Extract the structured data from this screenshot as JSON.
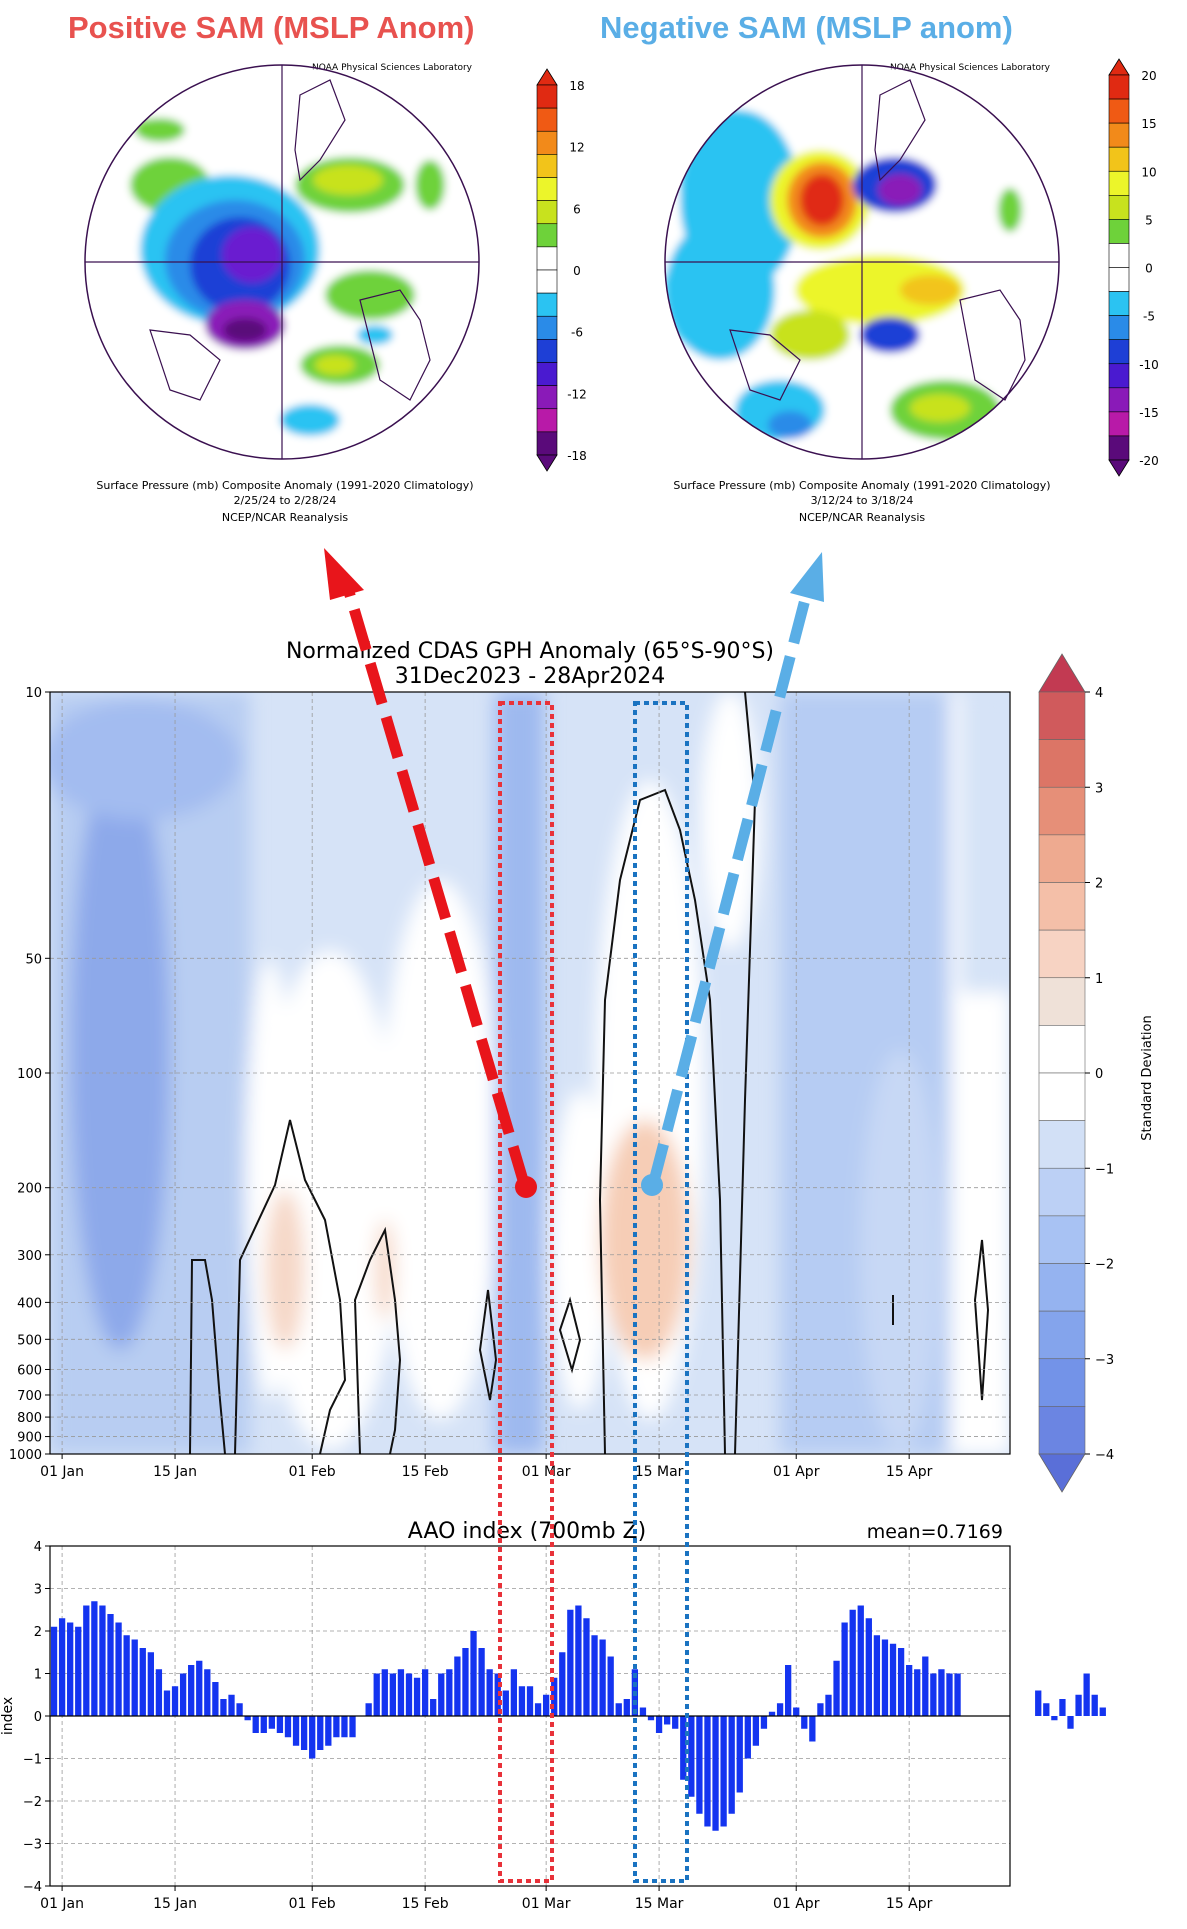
{
  "maps": [
    {
      "header": "Positive SAM (MSLP Anom)",
      "header_color": "#e8524f",
      "credit": "NOAA Physical Sciences Laboratory",
      "caption1": "Surface Pressure (mb) Composite Anomaly (1991-2020 Climatology)",
      "caption2": "2/25/24  to 2/28/24",
      "caption3": "NCEP/NCAR Reanalysis",
      "colorbar_ticks": [
        "18",
        "12",
        "6",
        "0",
        "-6",
        "-12",
        "-18"
      ]
    },
    {
      "header": "Negative SAM (MSLP anom)",
      "header_color": "#5aaee6",
      "credit": "NOAA Physical Sciences Laboratory",
      "caption1": "Surface Pressure (mb) Composite Anomaly (1991-2020 Climatology)",
      "caption2": "3/12/24  to 3/18/24",
      "caption3": "NCEP/NCAR Reanalysis",
      "colorbar_ticks": [
        "20",
        "15",
        "10",
        "5",
        "0",
        "-5",
        "-10",
        "-15",
        "-20"
      ]
    }
  ],
  "colors": {
    "positive_arrow": "#e8151b",
    "negative_arrow": "#5aaee6",
    "red_box": "#e8323a",
    "blue_box": "#1a73c1",
    "bars": "#1434f0"
  },
  "chart_data": [
    {
      "type": "heatmap",
      "title": "Normalized CDAS GPH Anomaly (65°S-90°S)",
      "subtitle": "31Dec2023 - 28Apr2024",
      "y_scale": "log (reversed)",
      "y_tick_labels": [
        "10",
        "50",
        "100",
        "200",
        "300",
        "400",
        "500",
        "600",
        "700",
        "800",
        "900",
        "1000"
      ],
      "x_tick_labels": [
        "01 Jan",
        "15 Jan",
        "01 Feb",
        "15 Feb",
        "01 Mar",
        "15 Mar",
        "01 Apr",
        "15 Apr"
      ],
      "colorbar_label": "Standard Deviation",
      "colorbar_ticks": [
        "4",
        "3",
        "2",
        "1",
        "0",
        "−1",
        "−2",
        "−3",
        "−4"
      ],
      "grid": true
    },
    {
      "type": "bar",
      "title": "AAO index (700mb Z)",
      "annotation": "mean=0.7169",
      "ylabel": "index",
      "ylim": [
        -4,
        4
      ],
      "y_tick_labels": [
        "4",
        "3",
        "2",
        "1",
        "0",
        "−1",
        "−2",
        "−3",
        "−4"
      ],
      "x_tick_labels": [
        "01 Jan",
        "15 Jan",
        "01 Feb",
        "15 Feb",
        "01 Mar",
        "15 Mar",
        "01 Apr",
        "15 Apr"
      ],
      "grid": true,
      "values": [
        2.1,
        2.3,
        2.2,
        2.1,
        2.6,
        2.7,
        2.6,
        2.4,
        2.2,
        1.9,
        1.8,
        1.6,
        1.5,
        1.1,
        0.6,
        0.7,
        1.0,
        1.2,
        1.3,
        1.1,
        0.8,
        0.4,
        0.5,
        0.3,
        -0.1,
        -0.4,
        -0.4,
        -0.3,
        -0.4,
        -0.5,
        -0.7,
        -0.8,
        -1.0,
        -0.8,
        -0.7,
        -0.5,
        -0.5,
        -0.5,
        0.0,
        0.3,
        1.0,
        1.1,
        1.0,
        1.1,
        1.0,
        0.9,
        1.1,
        0.4,
        1.0,
        1.1,
        1.4,
        1.6,
        2.0,
        1.6,
        1.1,
        1.0,
        0.6,
        1.1,
        0.7,
        0.7,
        0.3,
        0.5,
        0.9,
        1.5,
        2.5,
        2.6,
        2.3,
        1.9,
        1.8,
        1.4,
        0.3,
        0.4,
        1.1,
        0.2,
        -0.1,
        -0.4,
        -0.2,
        -0.3,
        -1.5,
        -1.9,
        -2.3,
        -2.6,
        -2.7,
        -2.6,
        -2.3,
        -1.8,
        -1.0,
        -0.7,
        -0.3,
        0.1,
        0.3,
        1.2,
        0.2,
        -0.3,
        -0.6,
        0.3,
        0.5,
        1.3,
        2.2,
        2.5,
        2.6,
        2.3,
        1.9,
        1.8,
        1.7,
        1.6,
        1.2,
        1.1,
        1.4,
        1.0,
        1.1,
        1.0,
        1.0,
        null,
        null,
        null,
        null,
        null,
        null,
        null,
        null,
        null,
        0.6,
        0.3,
        -0.1,
        0.4,
        -0.3,
        0.5,
        1.0,
        0.5,
        0.2
      ]
    }
  ]
}
